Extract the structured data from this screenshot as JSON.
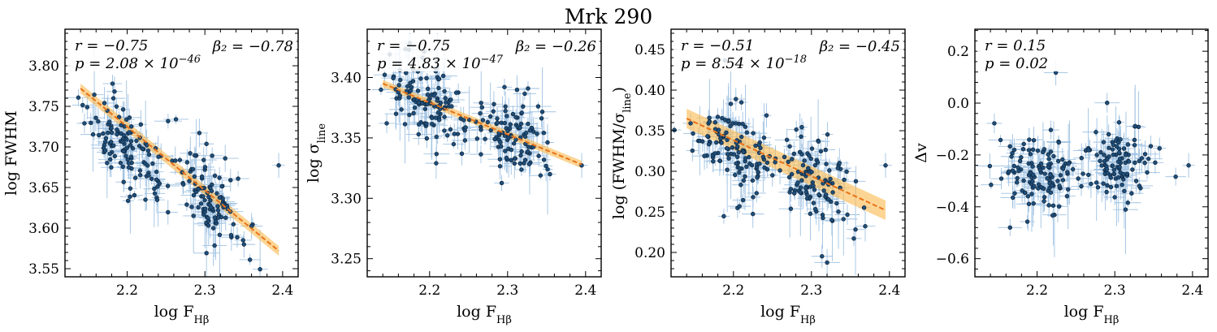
{
  "figure_title": "Mrk 290",
  "colors": {
    "point": "#1f4e79",
    "errorbar": "#8fb8de",
    "fit": "#f39c2b",
    "fit_band": "#fbbf5a"
  },
  "chart_data": [
    {
      "type": "scatter",
      "xlabel": "log F_Hβ",
      "ylabel": "log FWHM",
      "xlim": [
        2.12,
        2.42
      ],
      "ylim": [
        3.54,
        3.845
      ],
      "xticks": [
        2.2,
        2.3,
        2.4
      ],
      "xtick_labels": [
        "2.2",
        "2.3",
        "2.4"
      ],
      "yticks": [
        3.55,
        3.6,
        3.65,
        3.7,
        3.75,
        3.8
      ],
      "ytick_labels": [
        "3.55",
        "3.60",
        "3.65",
        "3.70",
        "3.75",
        "3.80"
      ],
      "annotations": {
        "r": "r = −0.75",
        "p": "p = 2.08 × 10^−46",
        "beta": "β₂ = −0.78"
      },
      "fit": {
        "x": [
          2.14,
          2.395
        ],
        "y": [
          3.772,
          3.572
        ],
        "band": 0.006
      },
      "points": {
        "cluster1": {
          "n": 120,
          "x_mean": 2.2,
          "x_sd": 0.025,
          "y_slope": -0.75,
          "y_intercept": 3.7
        },
        "cluster2": {
          "n": 110,
          "x_mean": 2.305,
          "x_sd": 0.022,
          "y_slope": -0.75,
          "y_intercept": 3.64
        }
      }
    },
    {
      "type": "scatter",
      "xlabel": "log F_Hβ",
      "ylabel": "log σ_line",
      "xlim": [
        2.12,
        2.42
      ],
      "ylim": [
        3.235,
        3.44
      ],
      "xticks": [
        2.2,
        2.3,
        2.4
      ],
      "xtick_labels": [
        "2.2",
        "2.3",
        "2.4"
      ],
      "yticks": [
        3.25,
        3.3,
        3.35,
        3.4
      ],
      "ytick_labels": [
        "3.25",
        "3.30",
        "3.35",
        "3.40"
      ],
      "annotations": {
        "r": "r = −0.75",
        "p": "p = 4.83 × 10^−47",
        "beta": "β₂ = −0.26"
      },
      "fit": {
        "x": [
          2.14,
          2.395
        ],
        "y": [
          3.395,
          3.328
        ],
        "band": 0.003
      },
      "points": {
        "cluster1": {
          "n": 120,
          "x_mean": 2.2,
          "x_sd": 0.025,
          "y_slope": -0.26,
          "y_intercept": 3.38
        },
        "cluster2": {
          "n": 110,
          "x_mean": 2.305,
          "x_sd": 0.022,
          "y_slope": -0.26,
          "y_intercept": 3.352
        }
      }
    },
    {
      "type": "scatter",
      "xlabel": "log F_Hβ",
      "ylabel": "log (FWHM/σ_line)",
      "xlim": [
        2.12,
        2.42
      ],
      "ylim": [
        0.17,
        0.475
      ],
      "xticks": [
        2.2,
        2.3,
        2.4
      ],
      "xtick_labels": [
        "2.2",
        "2.3",
        "2.4"
      ],
      "yticks": [
        0.2,
        0.25,
        0.3,
        0.35,
        0.4,
        0.45
      ],
      "ytick_labels": [
        "0.20",
        "0.25",
        "0.30",
        "0.35",
        "0.40",
        "0.45"
      ],
      "annotations": {
        "r": "r = −0.51",
        "p": "p = 8.54 × 10^−18",
        "beta": "β₂ = −0.45"
      },
      "fit": {
        "x": [
          2.14,
          2.395
        ],
        "y": [
          0.365,
          0.252
        ],
        "band": 0.012
      },
      "points": {
        "cluster1": {
          "n": 120,
          "x_mean": 2.2,
          "x_sd": 0.025,
          "y_slope": -0.45,
          "y_intercept": 0.33
        },
        "cluster2": {
          "n": 110,
          "x_mean": 2.305,
          "x_sd": 0.022,
          "y_slope": -0.45,
          "y_intercept": 0.29
        }
      }
    },
    {
      "type": "scatter",
      "xlabel": "log F_Hβ",
      "ylabel": "Δv",
      "xlim": [
        2.12,
        2.42
      ],
      "ylim": [
        -0.67,
        0.285
      ],
      "xticks": [
        2.2,
        2.3,
        2.4
      ],
      "xtick_labels": [
        "2.2",
        "2.3",
        "2.4"
      ],
      "yticks": [
        -0.6,
        -0.4,
        -0.2,
        0.0,
        0.2
      ],
      "ytick_labels": [
        "−0.6",
        "−0.4",
        "−0.2",
        "0.0",
        "0.2"
      ],
      "annotations": {
        "r": "r = 0.15",
        "p": "p = 0.02",
        "beta": ""
      },
      "fit": null,
      "points": {
        "cluster1": {
          "n": 120,
          "x_mean": 2.2,
          "x_sd": 0.025,
          "y_slope": 0.15,
          "y_intercept": -0.28
        },
        "cluster2": {
          "n": 110,
          "x_mean": 2.305,
          "x_sd": 0.022,
          "y_slope": 0.15,
          "y_intercept": -0.24
        }
      }
    }
  ]
}
